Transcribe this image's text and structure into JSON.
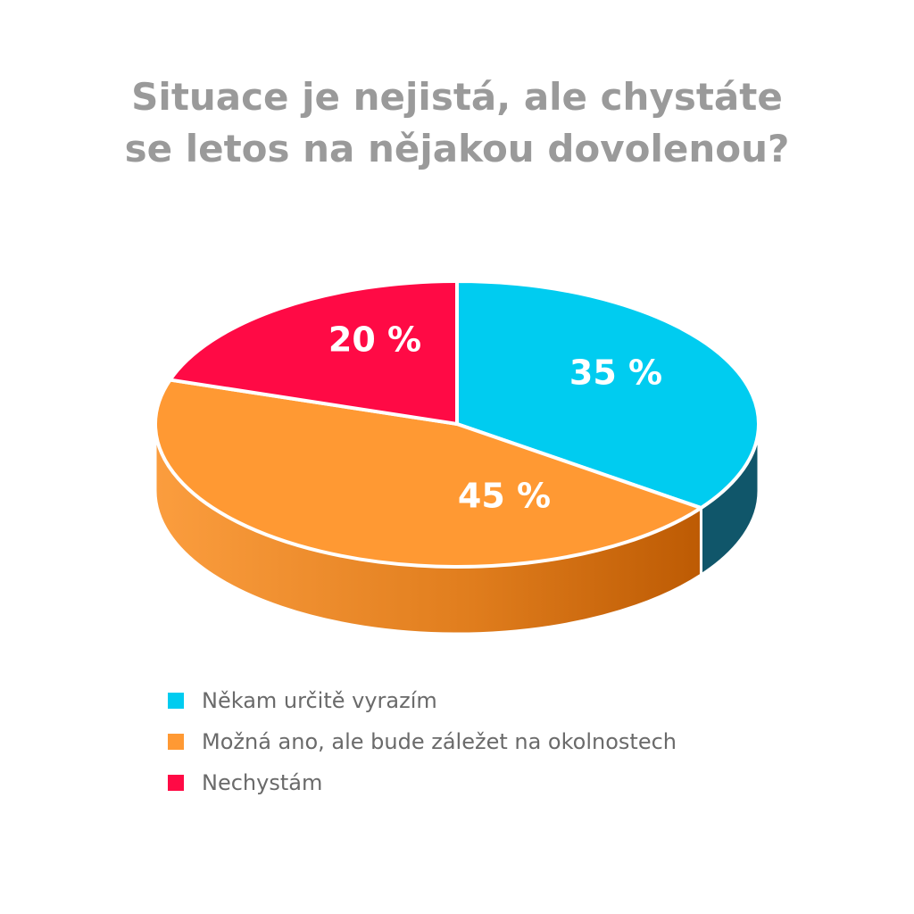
{
  "chart_data": {
    "type": "pie",
    "title_lines": [
      "Situace je nejistá, ale chystáte",
      "se letos na nějakou dovolenou?"
    ],
    "slices": [
      {
        "name": "Někam určitě vyrazím",
        "value": 35,
        "label": "35 %",
        "color": "#00ccf0",
        "side_color": "#10566a"
      },
      {
        "name": "Možná ano, ale bude záležet na okolnostech",
        "value": 45,
        "label": "45 %",
        "color": "#ff9933",
        "side_color": "#e07e1e"
      },
      {
        "name": "Nechystám",
        "value": 20,
        "label": "20 %",
        "color": "#ff0a45",
        "side_color": "#b00030"
      }
    ]
  }
}
